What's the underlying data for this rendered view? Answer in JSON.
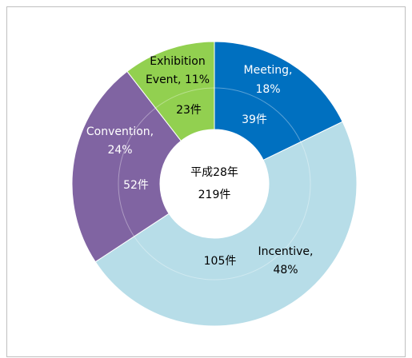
{
  "chart_data": {
    "type": "donut",
    "categories": [
      "Meeting",
      "Incentive",
      "Convention",
      "Exhibition Event"
    ],
    "values": [
      39,
      105,
      52,
      23
    ],
    "value_labels": [
      "39件",
      "105件",
      "52件",
      "23件"
    ],
    "percentages": [
      18,
      48,
      24,
      11
    ],
    "slice_labels": [
      [
        "Meeting,",
        "18%"
      ],
      [
        "Incentive,",
        "48%"
      ],
      [
        "Convention,",
        "24%"
      ],
      [
        "Exhibition",
        "Event, 11%"
      ]
    ],
    "colors": [
      "#0070c0",
      "#b7dde8",
      "#8064a2",
      "#92d050"
    ],
    "center_label": "平成28年",
    "total": 219,
    "total_label": "219件"
  }
}
